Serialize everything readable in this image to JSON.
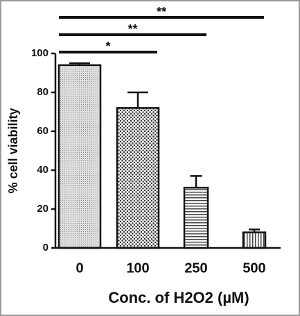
{
  "chart_data": {
    "type": "bar",
    "categories": [
      "0",
      "100",
      "250",
      "500"
    ],
    "values": [
      94,
      72,
      31,
      8
    ],
    "errors": [
      1,
      8,
      6,
      1.5
    ],
    "xlabel": "Conc. of H2O2 (µM)",
    "ylabel": "% cell viability",
    "ylim": [
      0,
      100
    ],
    "yticks": [
      0,
      20,
      40,
      60,
      80,
      100
    ],
    "significance": [
      "*",
      "**",
      "**"
    ]
  }
}
